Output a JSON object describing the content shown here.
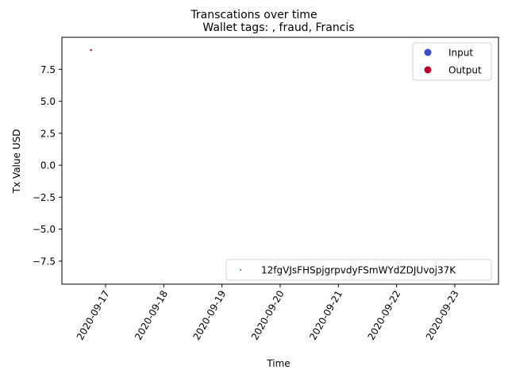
{
  "chart_data": {
    "type": "scatter",
    "suptitle": "Transcations over time",
    "title": "Wallet tags: , fraud, Francis",
    "xlabel": "Time",
    "ylabel": "Tx Value USD",
    "x_ticks": [
      "2020-09-17",
      "2020-09-18",
      "2020-09-19",
      "2020-09-20",
      "2020-09-21",
      "2020-09-22",
      "2020-09-23"
    ],
    "y_ticks": [
      "7.5",
      "5.0",
      "2.5",
      "0.0",
      "−2.5",
      "−5.0",
      "−7.5"
    ],
    "xlim": [
      "2020-09-16 06:00",
      "2020-09-23 18:00"
    ],
    "ylim": [
      -9.3,
      10.0
    ],
    "grid": false,
    "points": [
      {
        "x": "2020-09-16 18:00",
        "y": 9.0,
        "type": "Output",
        "color": "#b40426"
      }
    ],
    "legend_color": {
      "placement": "upper right",
      "entries": [
        {
          "label": "Input",
          "color": "#3b4cc0"
        },
        {
          "label": "Output",
          "color": "#b40426"
        }
      ]
    },
    "legend_wallet": {
      "placement": "lower right",
      "entries": [
        {
          "label": "12fgVJsFHSpjgrpvdyFSmWYdZDJUvoj37K",
          "color": "#1f77b4"
        }
      ]
    }
  }
}
